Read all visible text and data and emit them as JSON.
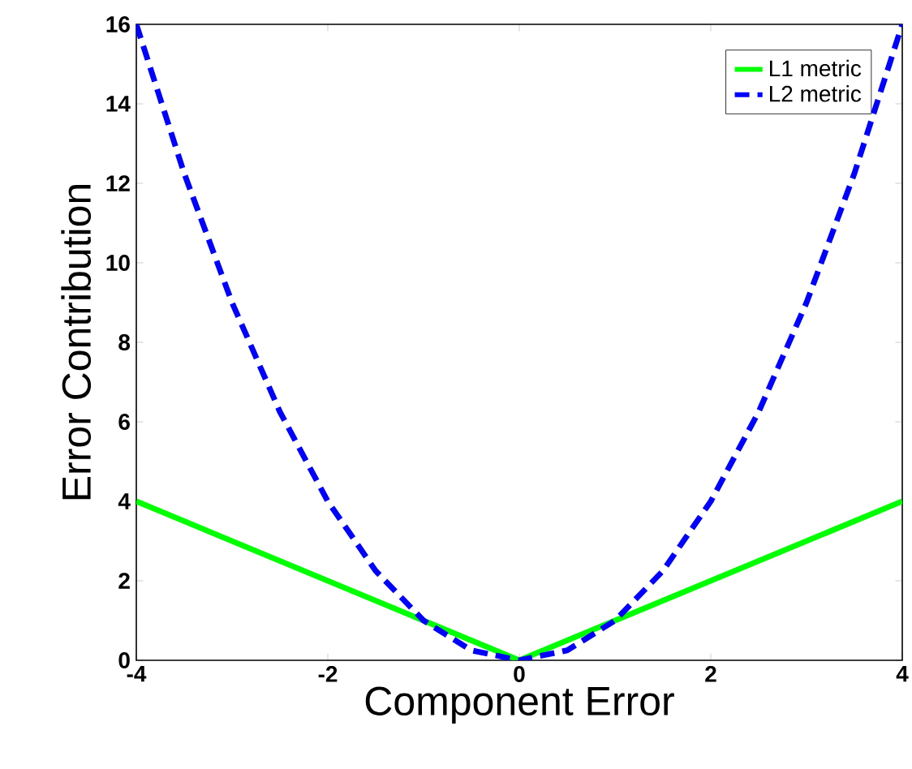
{
  "chart_data": {
    "type": "line",
    "xlabel": "Component Error",
    "ylabel": "Error Contribution",
    "xlim": [
      -4,
      4
    ],
    "ylim": [
      0,
      16
    ],
    "xticks": [
      -4,
      -2,
      0,
      2,
      4
    ],
    "yticks": [
      0,
      2,
      4,
      6,
      8,
      10,
      12,
      14,
      16
    ],
    "legend": "top right",
    "series": [
      {
        "name": "L1 metric",
        "color": "#00ff00",
        "line_style": "solid",
        "x": [
          -4,
          0,
          4
        ],
        "values": [
          4,
          0,
          4
        ]
      },
      {
        "name": "L2 metric",
        "color": "#0000ff",
        "line_style": "dashed",
        "x": [
          -4,
          -3.5,
          -3,
          -2.5,
          -2,
          -1.5,
          -1,
          -0.5,
          0,
          0.5,
          1,
          1.5,
          2,
          2.5,
          3,
          3.5,
          4
        ],
        "values": [
          16,
          12.25,
          9,
          6.25,
          4,
          2.25,
          1,
          0.25,
          0,
          0.25,
          1,
          2.25,
          4,
          6.25,
          9,
          12.25,
          16
        ]
      }
    ]
  }
}
